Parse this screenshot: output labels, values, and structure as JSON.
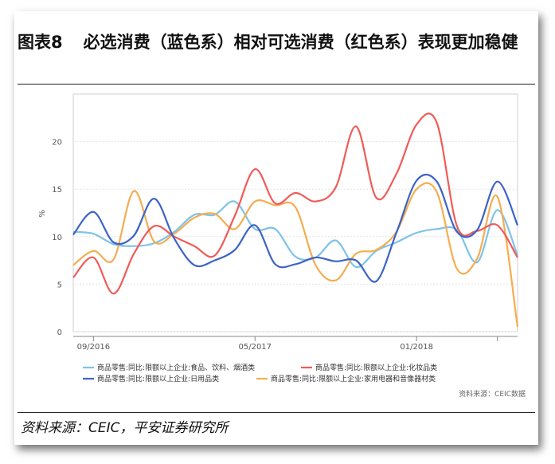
{
  "header": {
    "figure_no": "图表8",
    "title": "必选消费（蓝色系）相对可选消费（红色系）表现更加稳健"
  },
  "footer": {
    "source": "资料来源：CEIC，平安证券研究所"
  },
  "chart_data": {
    "type": "line",
    "ylabel": "%",
    "ylim": [
      0,
      25
    ],
    "yticks": [
      0,
      5,
      10,
      15,
      20
    ],
    "xtick_labels": [
      "09/2016",
      "05/2017",
      "01/2018"
    ],
    "xtick_index": [
      1,
      9,
      17
    ],
    "grid": true,
    "legend_position": "bottom",
    "source_note": "资料来源：CEIC数据",
    "x_count": 23,
    "series": [
      {
        "name": "商品零售:同比:限额以上企业:食品、饮料、烟酒类",
        "color": "#7ec3e8",
        "values": [
          10.5,
          10.3,
          9.2,
          9,
          9.3,
          10.5,
          12.3,
          12.3,
          13.7,
          10.8,
          10.8,
          7.9,
          7.8,
          9.6,
          6.8,
          8.5,
          9.4,
          10.4,
          10.8,
          10.7,
          7.3,
          12.8,
          8.0
        ]
      },
      {
        "name": "商品零售:同比:限额以上企业:化妆品类",
        "color": "#f05b57",
        "values": [
          5.7,
          7.8,
          4.0,
          8.2,
          11.1,
          10.0,
          9.0,
          8.0,
          12.2,
          17.1,
          13.5,
          14.6,
          13.7,
          15.2,
          21.6,
          14.1,
          16.6,
          21.8,
          22.0,
          11.1,
          10.6,
          11.2,
          7.8
        ]
      },
      {
        "name": "商品零售:同比:限额以上企业:日用品类",
        "color": "#3d63c7",
        "values": [
          10.2,
          12.6,
          9.4,
          10.1,
          14.0,
          9.8,
          7.0,
          7.5,
          8.6,
          11.2,
          7.1,
          7.1,
          7.8,
          7.4,
          7.5,
          5.3,
          10.4,
          15.9,
          15.8,
          10.5,
          10.7,
          15.8,
          11.2
        ]
      },
      {
        "name": "商品零售:同比:限额以上企业:家用电器和音像器材类",
        "color": "#f5ad50",
        "values": [
          7.0,
          8.5,
          7.6,
          14.8,
          9.5,
          10.3,
          12.0,
          12.4,
          10.8,
          13.7,
          13.3,
          13.1,
          7.0,
          5.4,
          8.2,
          8.6,
          10.5,
          15.0,
          14.7,
          6.6,
          7.7,
          14.2,
          0.5
        ]
      }
    ]
  }
}
